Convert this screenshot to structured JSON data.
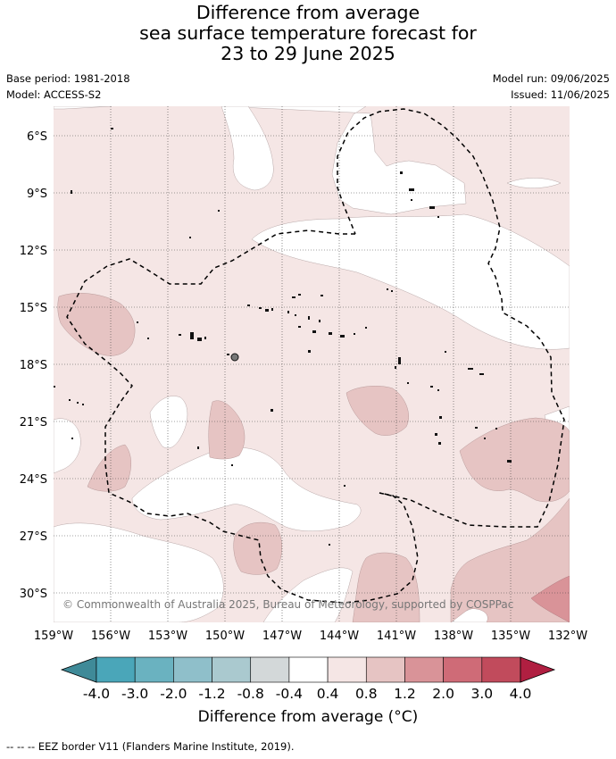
{
  "title_lines": [
    "Difference from average",
    "sea surface temperature forecast for",
    "23 to 29 June 2025"
  ],
  "base_period": "Base period: 1981-2018",
  "model": "Model: ACCESS-S2",
  "model_run": "Model run: 09/06/2025",
  "issued": "Issued: 11/06/2025",
  "lat_labels": [
    "6°S",
    "9°S",
    "12°S",
    "15°S",
    "18°S",
    "21°S",
    "24°S",
    "27°S",
    "30°S"
  ],
  "lon_labels": [
    "159°W",
    "156°W",
    "153°W",
    "150°W",
    "147°W",
    "144°W",
    "141°W",
    "138°W",
    "135°W",
    "132°W"
  ],
  "copyright": "© Commonwealth of Australia 2025, Bureau of Meteorology, supported by COSPPac",
  "colorbar": {
    "ticks": [
      "-4.0",
      "-3.0",
      "-2.0",
      "-1.2",
      "-0.8",
      "-0.4",
      "0.4",
      "0.8",
      "1.2",
      "2.0",
      "3.0",
      "4.0"
    ],
    "colors": [
      "#3f8a98",
      "#4aa6b9",
      "#6ab2c0",
      "#8fbfca",
      "#aac9cf",
      "#d3d8d9",
      "#ffffff",
      "#f5e6e5",
      "#e6c4c3",
      "#d99398",
      "#cf6b77",
      "#c14b5c",
      "#b01f41"
    ],
    "title": "Difference from average (°C)"
  },
  "footer": "--  --  -- EEZ border V11 (Flanders Marine Institute, 2019)."
}
